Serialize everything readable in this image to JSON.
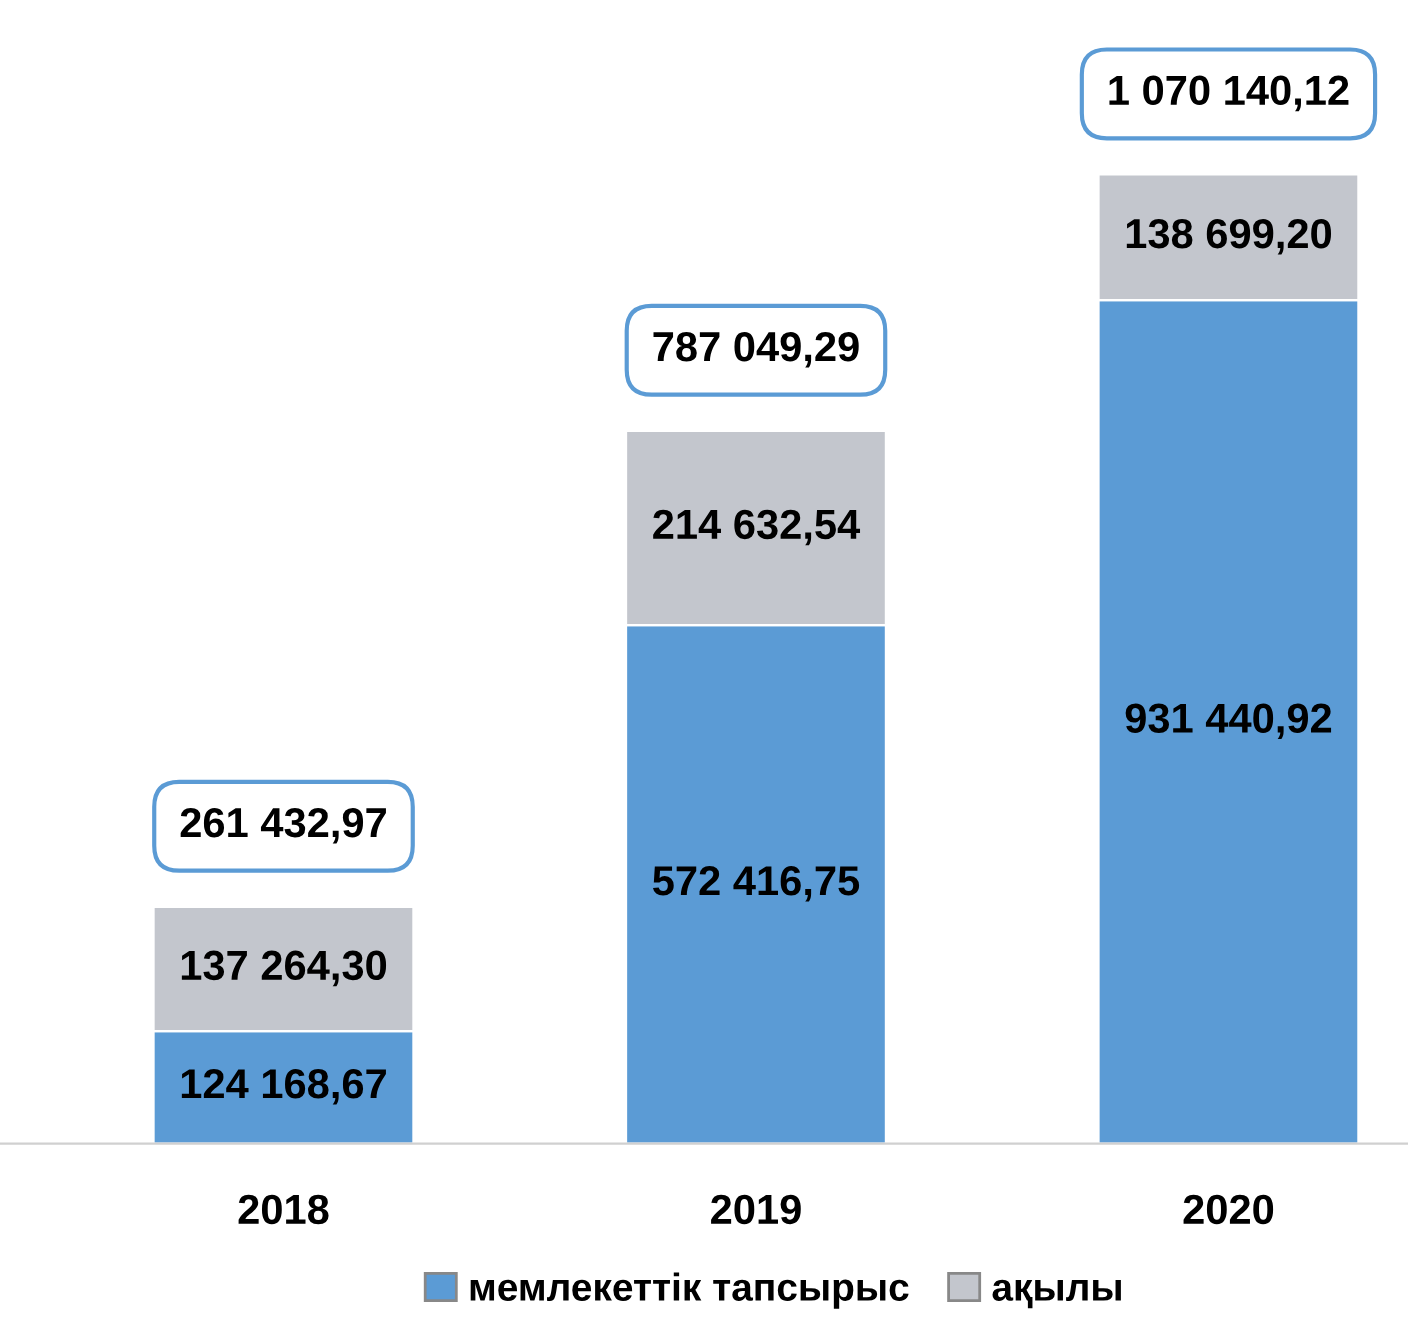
{
  "chart_data": {
    "type": "bar",
    "stacked": true,
    "categories": [
      "2018",
      "2019",
      "2020"
    ],
    "series": [
      {
        "name": "мемлекеттік тапсырыс",
        "color": "#5b9bd5",
        "values": [
          124168.67,
          572416.75,
          931440.92
        ],
        "value_labels": [
          "124 168,67",
          "572 416,75",
          "931 440,92"
        ]
      },
      {
        "name": "ақылы",
        "color": "#c3c6cd",
        "values": [
          137264.3,
          214632.54,
          138699.2
        ],
        "value_labels": [
          "137 264,30",
          "214 632,54",
          "138 699,20"
        ]
      }
    ],
    "totals": [
      "261 432,97",
      "787 049,29",
      "1 070 140,12"
    ],
    "legend": "bottom",
    "grid": false
  }
}
